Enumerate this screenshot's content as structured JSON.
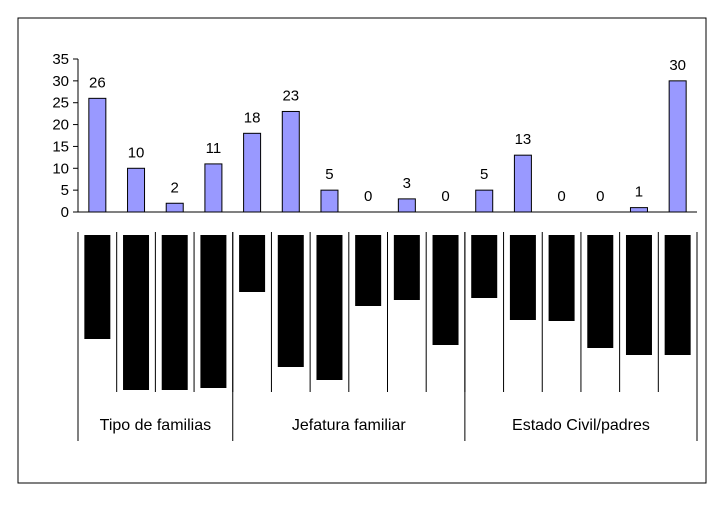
{
  "chart_data": {
    "type": "bar",
    "categories": [
      "",
      "",
      "",
      "",
      "",
      "",
      "",
      "",
      "",
      "",
      "",
      "",
      "",
      "",
      "",
      ""
    ],
    "values": [
      26,
      10,
      2,
      11,
      18,
      23,
      5,
      0,
      3,
      0,
      5,
      13,
      0,
      0,
      1,
      30
    ],
    "data_labels": [
      "26",
      "10",
      "2",
      "11",
      "18",
      "23",
      "5",
      "0",
      "3",
      "0",
      "5",
      "13",
      "0",
      "0",
      "1",
      "30"
    ],
    "groups": [
      {
        "label": "Tipo de familias",
        "count": 4
      },
      {
        "label": "Jefatura familiar",
        "count": 6
      },
      {
        "label": "Estado Civil/padres",
        "count": 6
      }
    ],
    "yticks": [
      "0",
      "5",
      "10",
      "15",
      "20",
      "25",
      "30",
      "35"
    ],
    "ylim": [
      0,
      35
    ],
    "title": "",
    "xlabel": "",
    "ylabel": "",
    "bar_color": "#9999ff",
    "bar_outline": "#000000",
    "label_overlay_color": "#000000",
    "legend": "none",
    "grid": false
  }
}
